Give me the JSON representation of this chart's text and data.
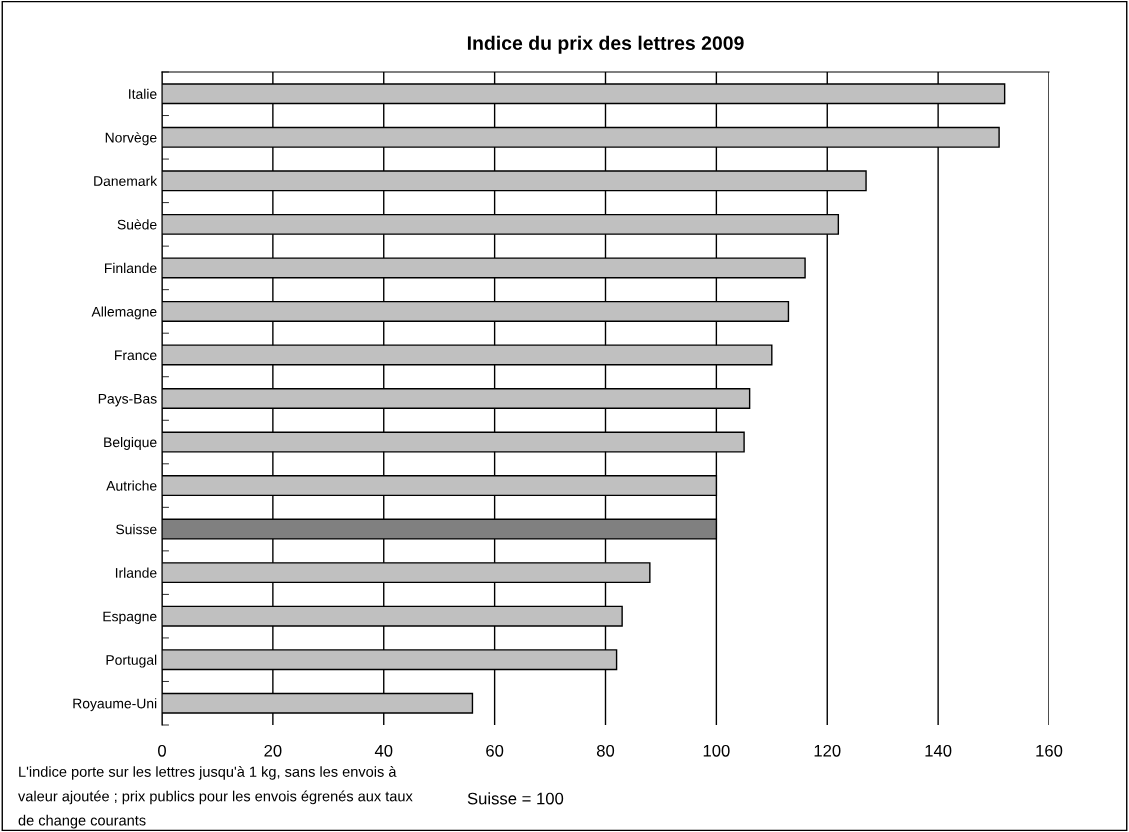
{
  "chart_data": {
    "type": "bar",
    "orientation": "horizontal",
    "title": "Indice du prix des lettres 2009",
    "categories": [
      "Italie",
      "Norvège",
      "Danemark",
      "Suède",
      "Finlande",
      "Allemagne",
      "France",
      "Pays-Bas",
      "Belgique",
      "Autriche",
      "Suisse",
      "Irlande",
      "Espagne",
      "Portugal",
      "Royaume-Uni"
    ],
    "values": [
      152,
      151,
      127,
      122,
      116,
      113,
      110,
      106,
      105,
      100,
      100,
      88,
      83,
      82,
      56
    ],
    "colors": [
      "#c0c0c0",
      "#c0c0c0",
      "#c0c0c0",
      "#c0c0c0",
      "#c0c0c0",
      "#c0c0c0",
      "#c0c0c0",
      "#c0c0c0",
      "#c0c0c0",
      "#c0c0c0",
      "#808080",
      "#c0c0c0",
      "#c0c0c0",
      "#c0c0c0",
      "#c0c0c0"
    ],
    "xlim": [
      0,
      160
    ],
    "xticks": [
      0,
      20,
      40,
      60,
      80,
      100,
      120,
      140,
      160
    ],
    "grid": "x",
    "annotations": [
      "L'indice porte sur les lettres jusqu'à 1 kg, sans les envois à valeur ajoutée ; prix publics pour les envois égrenés aux taux de change courants",
      "Suisse = 100"
    ]
  }
}
